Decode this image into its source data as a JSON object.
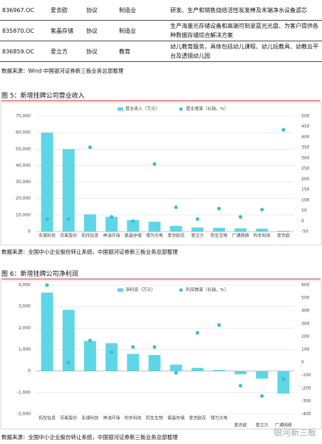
{
  "table": {
    "rows": [
      [
        "836967.OC",
        "爱去欧",
        "协议",
        "制造业",
        "研发、生产和销售烧结活性炭发棒及末端净水设备滤芯"
      ],
      [
        "835870.OC",
        "紫晶存储",
        "协议",
        "制造业",
        "生产海量光存储设备和高端可刻录蓝光光盘、为客户提供各种数据存储综合解决方案"
      ],
      [
        "836859.OC",
        "爱立方",
        "协议",
        "教育",
        "幼儿教育服务，具体包括幼儿课程、幼儿玩教具、幼教云平台及透镜幼儿园"
      ]
    ]
  },
  "notes": [
    "数据来源：Wind 中国银河证券新三板业务总部整理",
    "数据来源：全国中小企业股份转让系统，中国银河证券新三板业务总部整理",
    "数据来源：全国中小企业股份转让系统，中国银河证券新三板业务总部整理"
  ],
  "watermark": "银河新三板",
  "chart_data": [
    {
      "type": "bar",
      "title": "图 5：新增挂牌公司营业收入",
      "categories": [
        "永捷科技",
        "苏氧股份",
        "拓控信息",
        "神油环保",
        "紫晶存储",
        "博为光电",
        "爱去欧花",
        "爱立方",
        "阳生生物",
        "广通网络",
        "昀丰科技",
        "爱去欧"
      ],
      "series": [
        {
          "name": "营业收入（万元）",
          "type": "bar",
          "color": "#5fd6e6",
          "values": [
            60000,
            50000,
            10500,
            9000,
            7000,
            6000,
            3500,
            2500,
            2300,
            2000,
            1800,
            500
          ]
        },
        {
          "name": "营业增速（右轴，%）",
          "type": "scatter",
          "axis": "y2",
          "color": "#3cbfd0",
          "values": [
            10,
            10,
            352,
            20,
            0,
            272,
            66,
            10,
            60,
            20,
            55,
            435
          ]
        }
      ],
      "ylim": [
        0,
        70000
      ],
      "yticks": [
        0,
        {
          "value": 10000,
          "label": "10,000"
        },
        {
          "value": 20000,
          "label": "20,000"
        },
        {
          "value": 30000,
          "label": "30,000"
        },
        {
          "value": 40000,
          "label": "40,000"
        },
        {
          "value": 50000,
          "label": "50,000"
        },
        {
          "value": 60000,
          "label": "60,000"
        },
        {
          "value": 70000,
          "label": "70,000"
        }
      ],
      "y2lim": [
        -50,
        500
      ],
      "y2ticks": [
        -50,
        0,
        50,
        100,
        150,
        200,
        250,
        300,
        350,
        400,
        450,
        500
      ],
      "grid": true,
      "legend": "top"
    },
    {
      "type": "bar",
      "title": "图 6：新增挂牌公司净利润",
      "categories": [
        "拓控信息",
        "苏氧股份",
        "永捷科技",
        "神油环保",
        "昀丰科技",
        "阳生生物",
        "紫晶存储",
        "爱去欧花",
        "博为光电",
        "爱去欧",
        "爱立方",
        "广通网络"
      ],
      "series": [
        {
          "name": "净利润（万元）",
          "type": "bar",
          "color": "#5fd6e6",
          "values": [
            3650,
            2850,
            1400,
            1300,
            800,
            750,
            300,
            150,
            50,
            -150,
            -350,
            -1050
          ]
        },
        {
          "name": "利润增速（右轴，%）",
          "type": "scatter",
          "axis": "y2",
          "color": "#3cbfd0",
          "values": [
            600,
            0,
            170,
            80,
            120,
            120,
            -80,
            230,
            290,
            -180,
            -260,
            -130
          ]
        }
      ],
      "ylim": [
        -2000,
        4000
      ],
      "yticks": [
        {
          "value": -2000,
          "label": "-2,000"
        },
        {
          "value": -1000,
          "label": "-1,000"
        },
        0,
        {
          "value": 1000,
          "label": "1,000"
        },
        {
          "value": 2000,
          "label": "2,000"
        },
        {
          "value": 3000,
          "label": "3,000"
        },
        {
          "value": 4000,
          "label": "4,000"
        }
      ],
      "y2lim": [
        -400,
        600
      ],
      "y2ticks": [
        -400,
        -300,
        -200,
        -100,
        0,
        100,
        200,
        300,
        400,
        500,
        600
      ],
      "grid": true,
      "legend": "top"
    }
  ]
}
